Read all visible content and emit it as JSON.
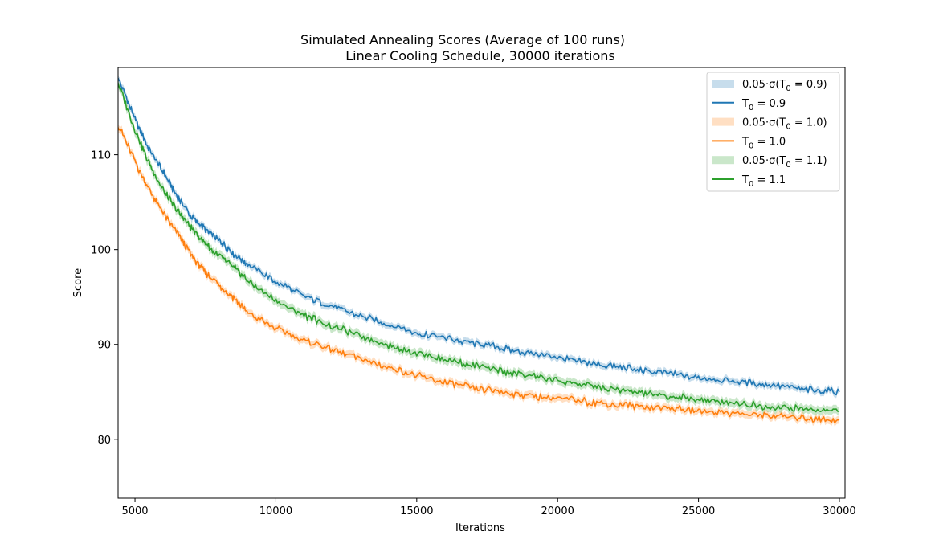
{
  "chart_data": {
    "type": "line",
    "title": "Simulated Annealing Scores (Average of 100 runs)",
    "subtitle": "Linear Cooling Schedule, 30000 iterations",
    "xlabel": "Iterations",
    "ylabel": "Score",
    "xlim": [
      4400,
      30200
    ],
    "ylim": [
      73.8,
      119.2
    ],
    "x_ticks": [
      5000,
      10000,
      15000,
      20000,
      25000,
      30000
    ],
    "y_ticks": [
      80,
      90,
      100,
      110
    ],
    "grid": false,
    "legend_position": "top-right",
    "x": [
      4400,
      5000,
      5500,
      6000,
      6500,
      7000,
      7500,
      8000,
      8500,
      9000,
      10000,
      11000,
      12000,
      13000,
      14000,
      15000,
      16000,
      17000,
      18000,
      19000,
      20000,
      21000,
      22000,
      23000,
      24000,
      25000,
      26000,
      27000,
      28000,
      29000,
      30000
    ],
    "series": [
      {
        "name": "T0 = 0.9",
        "legend_line": "T_0 = 0.9",
        "legend_band": "0.05·σ(T_0 = 0.9)",
        "color": "#1f77b4",
        "band_color": "#1f77b4",
        "band_halfwidth": 0.35,
        "values": [
          118.1,
          113.8,
          110.6,
          108.2,
          105.6,
          103.5,
          102.1,
          100.9,
          99.6,
          98.5,
          96.6,
          95.1,
          94.0,
          93.0,
          92.1,
          91.2,
          90.7,
          90.1,
          89.6,
          89.1,
          88.6,
          88.1,
          87.7,
          87.3,
          86.9,
          86.5,
          86.2,
          85.9,
          85.6,
          85.2,
          85.0
        ]
      },
      {
        "name": "T0 = 1.0",
        "legend_line": "T_0 = 1.0",
        "legend_band": "0.05·σ(T_0 = 1.0)",
        "color": "#ff7f0e",
        "band_color": "#ff7f0e",
        "band_halfwidth": 0.4,
        "values": [
          113.2,
          109.3,
          106.3,
          103.9,
          101.7,
          99.4,
          97.6,
          96.2,
          94.9,
          93.4,
          91.7,
          90.4,
          89.5,
          88.5,
          87.6,
          86.7,
          86.0,
          85.4,
          85.0,
          84.6,
          84.3,
          84.0,
          83.7,
          83.5,
          83.3,
          83.0,
          82.8,
          82.6,
          82.4,
          82.2,
          82.0
        ]
      },
      {
        "name": "T0 = 1.1",
        "legend_line": "T_0 = 1.1",
        "legend_band": "0.05·σ(T_0 = 1.1)",
        "color": "#2ca02c",
        "band_color": "#2ca02c",
        "band_halfwidth": 0.45,
        "values": [
          117.6,
          112.6,
          109.1,
          106.3,
          104.1,
          102.3,
          100.6,
          99.3,
          98.2,
          96.7,
          94.6,
          93.1,
          91.9,
          90.9,
          89.9,
          89.1,
          88.4,
          87.8,
          87.2,
          86.7,
          86.2,
          85.7,
          85.3,
          84.9,
          84.5,
          84.2,
          83.9,
          83.6,
          83.3,
          83.1,
          83.0
        ]
      }
    ]
  }
}
